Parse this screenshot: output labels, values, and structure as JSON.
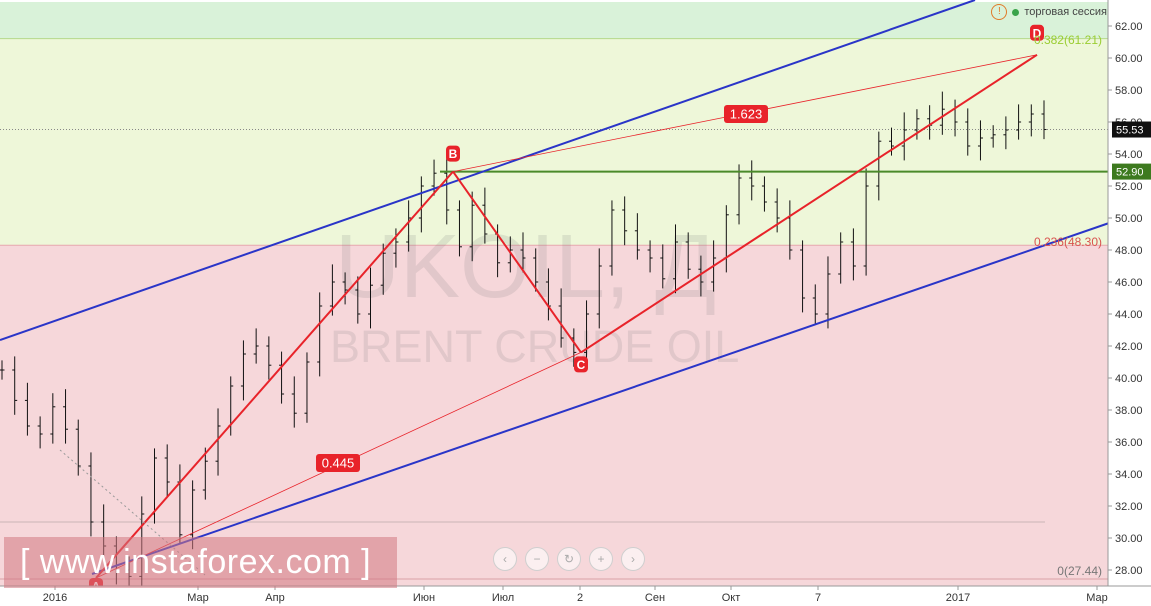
{
  "chart_data": {
    "type": "ohlc",
    "title": "UKOIL, Д",
    "subtitle": "BRENT CRUDE OIL",
    "ylim": [
      26.5,
      63.5
    ],
    "y_ticks": [
      "28.00",
      "30.00",
      "32.00",
      "34.00",
      "36.00",
      "38.00",
      "40.00",
      "42.00",
      "44.00",
      "46.00",
      "48.00",
      "50.00",
      "52.00",
      "54.00",
      "56.00",
      "58.00",
      "60.00",
      "62.00"
    ],
    "x_ticks": [
      "2016",
      "Мар",
      "Апр",
      "Июн",
      "Июл",
      "2",
      "Сен",
      "Окт",
      "7",
      "2017",
      "Мар"
    ],
    "last_price": "55.53",
    "level_price": "52.90",
    "zones": [
      {
        "from": 61.21,
        "to": 63.5,
        "color": "#d9f2d9"
      },
      {
        "from": 48.3,
        "to": 61.21,
        "color": "#eef7d9"
      },
      {
        "from": 26.5,
        "to": 48.3,
        "color": "#f6d7da"
      }
    ],
    "fib_labels": {
      "top": "0.382(61.21)",
      "mid": "0.236(48.30)",
      "bottom": "0(27.44)"
    },
    "points": {
      "A": 27.5,
      "B": 52.9,
      "C": 41.6,
      "D": 60.2
    },
    "point_names": [
      "A",
      "B",
      "C",
      "D"
    ],
    "ratio_labels": {
      "bc": "1.623",
      "ab": "0.445"
    },
    "close_sample": [
      40.5,
      38.6,
      37.0,
      36.5,
      38.2,
      36.8,
      34.5,
      31.0,
      29.5,
      28.0,
      27.6,
      31.5,
      35.0,
      33.5,
      30.2,
      33.0,
      34.8,
      37.0,
      39.5,
      41.5,
      42.0,
      40.8,
      39.0,
      37.8,
      41.0,
      44.5,
      46.0,
      45.5,
      44.0,
      45.8,
      47.8,
      48.5,
      50.0,
      52.0,
      52.8,
      50.5,
      48.2,
      50.8,
      49.0,
      47.2,
      48.0,
      47.5,
      46.0,
      44.5,
      42.5,
      41.6,
      44.0,
      47.0,
      50.5,
      49.2,
      48.0,
      47.5,
      46.2,
      48.5,
      46.8,
      46.0,
      47.5,
      50.2,
      52.5,
      52.0,
      51.0,
      50.0,
      48.0,
      45.0,
      44.0,
      46.5,
      48.5,
      47.0,
      52.0,
      54.8,
      54.5,
      55.5,
      56.2,
      55.8,
      56.8,
      56.0,
      54.5,
      55.0,
      55.2,
      55.5,
      56.0,
      56.5,
      55.53
    ]
  },
  "session": {
    "label": "торговая сессия"
  },
  "watermark": {
    "text": "[ www.instaforex.com ]"
  },
  "colors": {
    "channel": "#2a35c8",
    "pattern": "#e8232a",
    "level": "#4a8a2a",
    "price": "#111111"
  }
}
